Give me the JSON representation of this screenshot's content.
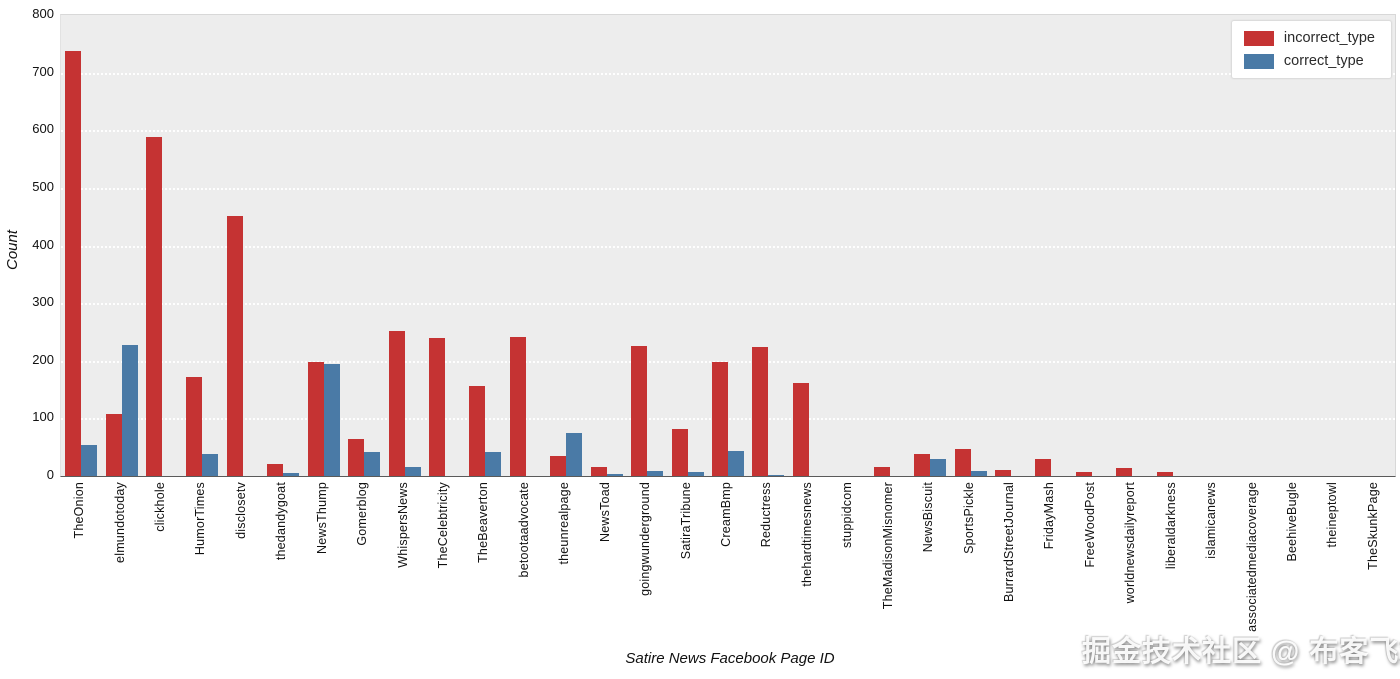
{
  "watermark": "掘金技术社区 @ 布客飞龙",
  "chart_data": {
    "type": "bar",
    "title": "",
    "xlabel": "Satire News Facebook Page ID",
    "ylabel": "Count",
    "ylim": [
      0,
      800
    ],
    "yticks": [
      0,
      100,
      200,
      300,
      400,
      500,
      600,
      700,
      800
    ],
    "grid": true,
    "legend_position": "upper right",
    "plot_background": "#ededed",
    "categories": [
      "TheOnion",
      "elmundotoday",
      "clickhole",
      "HumorTimes",
      "disclosetv",
      "thedandygoat",
      "NewsThump",
      "Gomerblog",
      "WhispersNews",
      "TheCelebtricity",
      "TheBeaverton",
      "betootaadvocate",
      "theunrealpage",
      "NewsToad",
      "goingwunderground",
      "SatiraTribune",
      "CreamBmp",
      "Reductress",
      "thehardtimesnews",
      "stuppidcom",
      "TheMadisonMisnomer",
      "NewsBiscuit",
      "SportsPickle",
      "BurrardStreetJournal",
      "FridayMash",
      "FreeWoodPost",
      "worldnewsdailyreport",
      "liberaldarkness",
      "islamicanews",
      "associatedmediacoverage",
      "BeehiveBugle",
      "theineptowl",
      "TheSkunkPage"
    ],
    "series": [
      {
        "name": "incorrect_type",
        "color": "#c53333",
        "values": [
          738,
          108,
          588,
          171,
          452,
          21,
          198,
          65,
          252,
          240,
          156,
          241,
          34,
          15,
          226,
          82,
          198,
          224,
          162,
          0,
          15,
          39,
          47,
          10,
          30,
          7,
          14,
          7,
          0,
          0,
          0,
          0,
          0
        ]
      },
      {
        "name": "correct_type",
        "color": "#4a7aa6",
        "values": [
          53,
          227,
          0,
          38,
          0,
          5,
          195,
          42,
          15,
          0,
          41,
          0,
          74,
          4,
          9,
          7,
          43,
          2,
          0,
          0,
          0,
          29,
          9,
          0,
          0,
          0,
          0,
          0,
          0,
          0,
          0,
          0,
          0
        ]
      }
    ]
  }
}
